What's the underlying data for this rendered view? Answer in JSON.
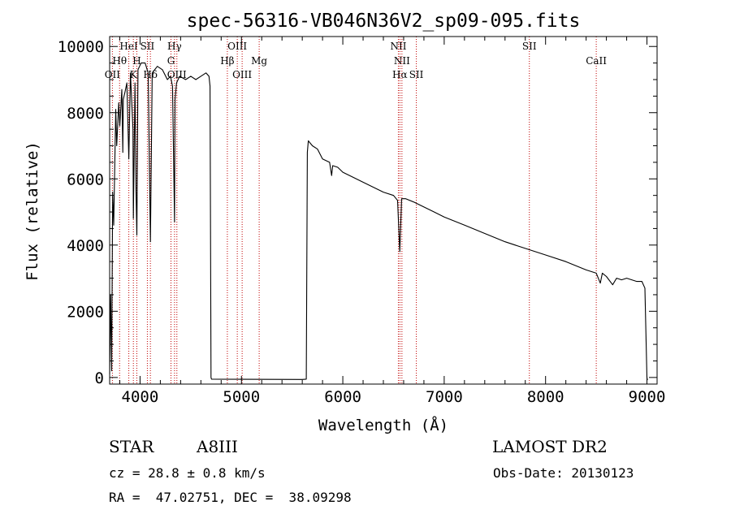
{
  "chart_data": {
    "type": "line",
    "title": "spec-56316-VB046N36V2_sp09-095.fits",
    "xlabel": "Wavelength (Å)",
    "ylabel": "Flux (relative)",
    "xlim": [
      3700,
      9100
    ],
    "ylim": [
      -200,
      10300
    ],
    "xticks": [
      4000,
      5000,
      6000,
      7000,
      8000,
      9000
    ],
    "yticks": [
      0,
      2000,
      4000,
      6000,
      8000,
      10000
    ],
    "x_minor_step": 200,
    "y_minor_step": 500,
    "colors": {
      "spectrum": "#000000",
      "lines": "#c00000",
      "axes": "#000000"
    },
    "spectrum": {
      "name": "flux",
      "x": [
        3700,
        3710,
        3720,
        3730,
        3740,
        3760,
        3770,
        3790,
        3800,
        3820,
        3830,
        3835,
        3850,
        3870,
        3889,
        3905,
        3930,
        3934,
        3950,
        3960,
        3968,
        3980,
        4010,
        4050,
        4080,
        4102,
        4120,
        4170,
        4220,
        4270,
        4300,
        4320,
        4340,
        4345,
        4360,
        4390,
        4450,
        4500,
        4550,
        4600,
        4650,
        4680,
        4690,
        4700,
        4705,
        5600,
        5640,
        5650,
        5660,
        5700,
        5750,
        5800,
        5870,
        5890,
        5900,
        5950,
        6000,
        6100,
        6200,
        6300,
        6400,
        6500,
        6540,
        6562,
        6580,
        6620,
        6700,
        6800,
        6900,
        7000,
        7200,
        7400,
        7600,
        7800,
        8000,
        8200,
        8400,
        8500,
        8540,
        8560,
        8600,
        8662,
        8700,
        8750,
        8800,
        8850,
        8900,
        8950,
        8980,
        9000,
        9005
      ],
      "y": [
        100,
        2500,
        200,
        5600,
        4600,
        8100,
        7000,
        8300,
        7600,
        8700,
        6800,
        8400,
        8600,
        8900,
        6600,
        9200,
        7500,
        4800,
        8900,
        5600,
        4300,
        9300,
        9500,
        9500,
        9200,
        4100,
        9200,
        9400,
        9300,
        9000,
        9100,
        8800,
        4700,
        8400,
        8900,
        9100,
        9000,
        9100,
        9000,
        9100,
        9200,
        9100,
        8800,
        0,
        -50,
        -60,
        -50,
        6800,
        7150,
        7000,
        6900,
        6600,
        6500,
        6100,
        6400,
        6350,
        6200,
        6050,
        5900,
        5750,
        5600,
        5500,
        5350,
        3800,
        5400,
        5400,
        5300,
        5150,
        5000,
        4850,
        4600,
        4350,
        4100,
        3900,
        3700,
        3500,
        3250,
        3150,
        2850,
        3150,
        3050,
        2800,
        3000,
        2950,
        3000,
        2950,
        2900,
        2900,
        2700,
        0,
        -80
      ]
    },
    "line_ids": [
      {
        "name": "OII",
        "wave": 3727,
        "row": 3
      },
      {
        "name": "Hθ",
        "wave": 3798,
        "row": 2
      },
      {
        "name": "HeI",
        "wave": 3889,
        "row": 1
      },
      {
        "name": "K",
        "wave": 3934,
        "row": 3
      },
      {
        "name": "H",
        "wave": 3968,
        "row": 2
      },
      {
        "name": "SII",
        "wave": 4072,
        "row": 1
      },
      {
        "name": "Hδ",
        "wave": 4102,
        "row": 3
      },
      {
        "name": "G",
        "wave": 4305,
        "row": 2
      },
      {
        "name": "Hγ",
        "wave": 4340,
        "row": 1
      },
      {
        "name": "OIII",
        "wave": 4363,
        "row": 3
      },
      {
        "name": "Hβ",
        "wave": 4861,
        "row": 2
      },
      {
        "name": "OIII",
        "wave": 4959,
        "row": 1
      },
      {
        "name": "OIII",
        "wave": 5007,
        "row": 3
      },
      {
        "name": "Mg",
        "wave": 5175,
        "row": 2
      },
      {
        "name": "NII",
        "wave": 6548,
        "row": 1
      },
      {
        "name": "Hα",
        "wave": 6563,
        "row": 3
      },
      {
        "name": "NII",
        "wave": 6583,
        "row": 2
      },
      {
        "name": "SII",
        "wave": 6725,
        "row": 3
      },
      {
        "name": "SII",
        "wave": 7840,
        "row": 1
      },
      {
        "name": "CaII",
        "wave": 8500,
        "row": 2
      }
    ]
  },
  "info": {
    "class": "STAR",
    "subclass": "A8III",
    "survey": "LAMOST DR2",
    "redshift": "cz = 28.8 ± 0.8 km/s",
    "obs_date": "Obs-Date: 20130123",
    "coords": "RA =  47.02751, DEC =  38.09298"
  }
}
